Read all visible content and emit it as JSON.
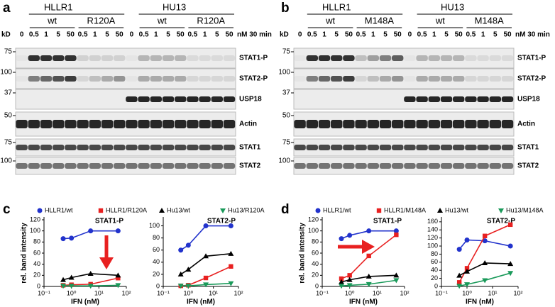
{
  "blots": [
    {
      "letter": "a",
      "kd_label": "kD",
      "cell_lines": [
        "HLLR1",
        "HU13"
      ],
      "groups": [
        "wt",
        "R120A",
        "wt",
        "R120A"
      ],
      "lanes": [
        "0",
        "0.5",
        "1",
        "5",
        "50",
        "0.5",
        "1",
        "5",
        "50",
        "0",
        "0.5",
        "1",
        "5",
        "50",
        "0.5",
        "1",
        "5",
        "50"
      ],
      "time_label": "nM 30 min",
      "rows": [
        {
          "marker": "75",
          "label": "STAT1-P"
        },
        {
          "marker": "100",
          "label": "STAT2-P"
        },
        {
          "marker": "37",
          "label": "USP18"
        },
        {
          "marker": "50",
          "label": "Actin"
        },
        {
          "marker": "75",
          "label": "STAT1"
        },
        {
          "marker": "100",
          "label": "STAT2"
        }
      ]
    },
    {
      "letter": "b",
      "kd_label": "kD",
      "cell_lines": [
        "HLLR1",
        "HU13"
      ],
      "groups": [
        "wt",
        "M148A",
        "wt",
        "M148A"
      ],
      "lanes": [
        "0",
        "0.5",
        "1",
        "5",
        "50",
        "0.5",
        "1",
        "5",
        "50",
        "0",
        "0.5",
        "1",
        "5",
        "50",
        "0.5",
        "1",
        "5",
        "50"
      ],
      "time_label": "nM 30 min",
      "rows": [
        {
          "marker": "75",
          "label": "STAT1-P"
        },
        {
          "marker": "100",
          "label": "STAT2-P"
        },
        {
          "marker": "37",
          "label": "USP18"
        },
        {
          "marker": "50",
          "label": "Actin"
        },
        {
          "marker": "75",
          "label": "STAT1"
        },
        {
          "marker": "100",
          "label": "STAT2"
        }
      ]
    }
  ],
  "panel_letters": [
    "c",
    "d"
  ],
  "chart_data": [
    {
      "type": "line",
      "title": "STAT1-P",
      "y_label": "rel. band intensity",
      "x_label": "IFN (nM)",
      "log_x": true,
      "x": [
        0.5,
        1,
        5,
        50
      ],
      "xlim": [
        0.1,
        100
      ],
      "xticks": [
        {
          "value": 0.1,
          "label": "10⁻¹"
        },
        {
          "value": 1,
          "label": "10⁰"
        },
        {
          "value": 10,
          "label": "10¹"
        },
        {
          "value": 100,
          "label": "10²"
        }
      ],
      "ylim": [
        0,
        120
      ],
      "yticks": [
        0,
        20,
        40,
        60,
        80,
        100,
        120
      ],
      "series": [
        {
          "name": "HLLR1/wt",
          "color": "#2233cc",
          "marker": "circle",
          "values": [
            86,
            87,
            100,
            100
          ]
        },
        {
          "name": "HLLR1/R120A",
          "color": "#e82020",
          "marker": "square",
          "values": [
            2,
            3,
            4,
            15
          ]
        },
        {
          "name": "Hu13/wt",
          "color": "#000000",
          "marker": "triangle-up",
          "values": [
            12,
            16,
            23,
            20
          ]
        },
        {
          "name": "Hu13/R120A",
          "color": "#1a9a5a",
          "marker": "triangle-down",
          "values": [
            1,
            1,
            1,
            2
          ]
        }
      ]
    },
    {
      "type": "line",
      "title": "STAT2-P",
      "x_label": "IFN (nM)",
      "log_x": true,
      "x": [
        0.5,
        1,
        5,
        50
      ],
      "xlim": [
        0.1,
        100
      ],
      "xticks": [
        {
          "value": 0.1,
          "label": "10⁻¹"
        },
        {
          "value": 1,
          "label": "10⁰"
        },
        {
          "value": 10,
          "label": "10¹"
        },
        {
          "value": 100,
          "label": "10²"
        }
      ],
      "ylim": [
        0,
        110
      ],
      "yticks": [
        0,
        20,
        40,
        60,
        80,
        100
      ],
      "series": [
        {
          "color": "#2233cc",
          "marker": "circle",
          "values": [
            60,
            68,
            100,
            100
          ]
        },
        {
          "color": "#e82020",
          "marker": "square",
          "values": [
            1,
            2,
            14,
            33
          ]
        },
        {
          "color": "#000000",
          "marker": "triangle-up",
          "values": [
            20,
            28,
            50,
            54
          ]
        },
        {
          "color": "#1a9a5a",
          "marker": "triangle-down",
          "values": [
            1,
            1,
            3,
            5
          ]
        }
      ]
    },
    {
      "type": "line",
      "title": "STAT1-P",
      "y_label": "rel. band intensity",
      "x_label": "IFN (nM)",
      "log_x": true,
      "x": [
        0.5,
        1,
        5,
        50
      ],
      "xlim": [
        0.1,
        100
      ],
      "xticks": [
        {
          "value": 0.1,
          "label": "10⁻¹"
        },
        {
          "value": 1,
          "label": "10⁰"
        },
        {
          "value": 10,
          "label": "10¹"
        },
        {
          "value": 100,
          "label": "10²"
        }
      ],
      "ylim": [
        0,
        120
      ],
      "yticks": [
        0,
        20,
        40,
        60,
        80,
        100,
        120
      ],
      "series": [
        {
          "name": "HLLR1/wt",
          "color": "#2233cc",
          "marker": "circle",
          "values": [
            86,
            92,
            100,
            100
          ]
        },
        {
          "name": "HLLR1/M148A",
          "color": "#e82020",
          "marker": "square",
          "values": [
            14,
            20,
            55,
            93
          ]
        },
        {
          "name": "Hu13/wt",
          "color": "#000000",
          "marker": "triangle-up",
          "values": [
            8,
            12,
            18,
            20
          ]
        },
        {
          "name": "Hu13/M148A",
          "color": "#1a9a5a",
          "marker": "triangle-down",
          "values": [
            1,
            2,
            4,
            11
          ]
        }
      ]
    },
    {
      "type": "line",
      "title": "STAT2-P",
      "x_label": "IFN (nM)",
      "log_x": true,
      "x": [
        0.5,
        1,
        5,
        50
      ],
      "xlim": [
        0.1,
        100
      ],
      "xticks": [
        {
          "value": 0.1,
          "label": "10⁻¹"
        },
        {
          "value": 1,
          "label": "10⁰"
        },
        {
          "value": 10,
          "label": "10¹"
        },
        {
          "value": 100,
          "label": "10²"
        }
      ],
      "ylim": [
        0,
        165
      ],
      "yticks": [
        0,
        20,
        40,
        60,
        80,
        100,
        120,
        140,
        160
      ],
      "series": [
        {
          "color": "#2233cc",
          "marker": "circle",
          "values": [
            92,
            115,
            113,
            100
          ]
        },
        {
          "color": "#e82020",
          "marker": "square",
          "values": [
            10,
            45,
            125,
            153
          ]
        },
        {
          "color": "#000000",
          "marker": "triangle-up",
          "values": [
            27,
            37,
            58,
            56
          ]
        },
        {
          "color": "#1a9a5a",
          "marker": "triangle-down",
          "values": [
            1,
            5,
            15,
            33
          ]
        }
      ]
    }
  ]
}
